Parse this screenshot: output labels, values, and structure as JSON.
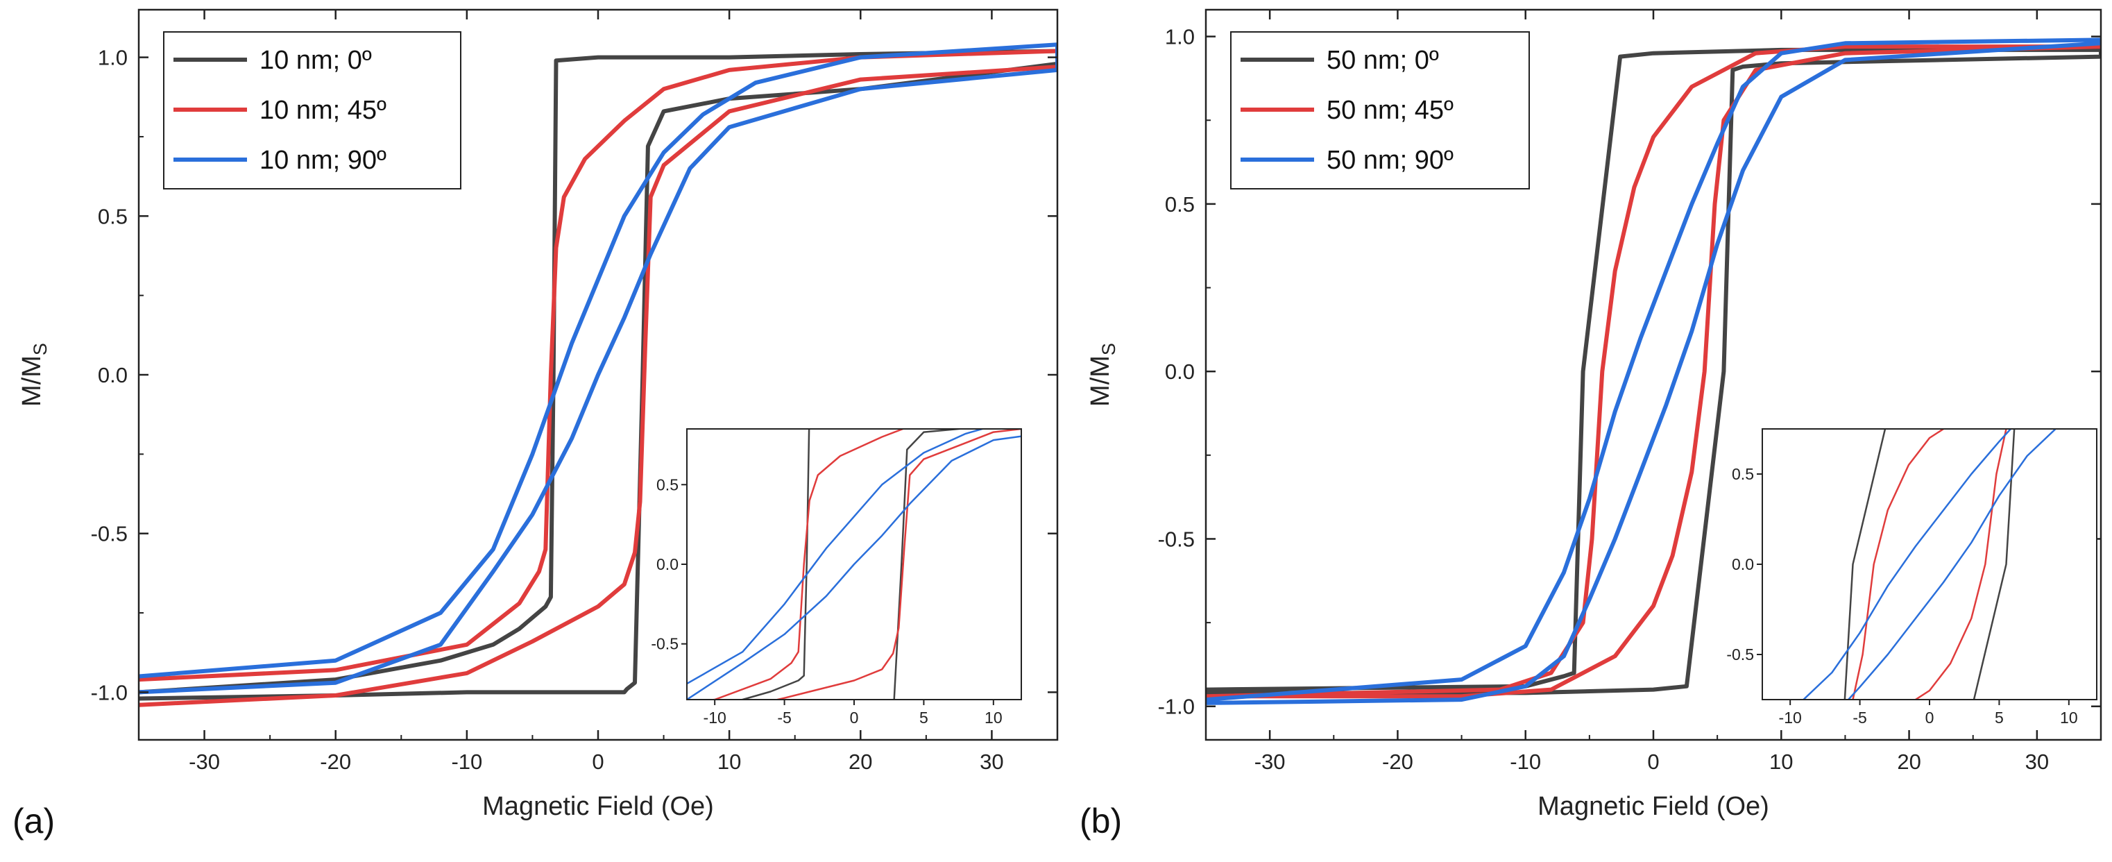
{
  "chart_data": [
    {
      "type": "line",
      "panel": "(a)",
      "xlabel": "Magnetic Field (Oe)",
      "ylabel": "M/M",
      "ylabel_subscript": "S",
      "xlim": [
        -35,
        35
      ],
      "ylim": [
        -1.15,
        1.15
      ],
      "xticks": [
        -30,
        -20,
        -10,
        0,
        10,
        20,
        30
      ],
      "yticks": [
        -1.0,
        -0.5,
        0.0,
        0.5,
        1.0
      ],
      "xtick_labels": [
        "-30",
        "-20",
        "-10",
        "0",
        "10",
        "20",
        "30"
      ],
      "ytick_labels": [
        "-1.0",
        "-0.5",
        "0.0",
        "0.5",
        "1.0"
      ],
      "legend_position": "top-left",
      "series": [
        {
          "name": "10 nm; 0º",
          "color": "#444444",
          "x": [
            -35,
            -20,
            -12,
            -8,
            -6,
            -4,
            -3.6,
            -3.4,
            -3.2,
            0,
            10,
            20,
            35,
            35,
            20,
            10,
            5,
            3.8,
            3.4,
            2.8,
            2.2,
            2,
            0,
            -5,
            -10,
            -20,
            -35
          ],
          "y": [
            -1.0,
            -0.96,
            -0.9,
            -0.85,
            -0.8,
            -0.73,
            -0.7,
            0.0,
            0.99,
            1.0,
            1.0,
            1.01,
            1.02,
            0.98,
            0.9,
            0.87,
            0.83,
            0.72,
            0.0,
            -0.97,
            -0.99,
            -1.0,
            -1.0,
            -1.0,
            -1.0,
            -1.01,
            -1.02
          ]
        },
        {
          "name": "10 nm; 45º",
          "color": "#e03c3c",
          "x": [
            -35,
            -20,
            -10,
            -6,
            -4.5,
            -4,
            -3.6,
            -3.2,
            -2.6,
            -1,
            2,
            5,
            10,
            20,
            35,
            35,
            20,
            10,
            5,
            4,
            3.6,
            3.2,
            2.8,
            2,
            0,
            -5,
            -10,
            -20,
            -35
          ],
          "y": [
            -0.96,
            -0.93,
            -0.85,
            -0.72,
            -0.62,
            -0.55,
            0.0,
            0.4,
            0.56,
            0.68,
            0.8,
            0.9,
            0.96,
            1.0,
            1.02,
            0.97,
            0.93,
            0.83,
            0.66,
            0.56,
            0.1,
            -0.4,
            -0.56,
            -0.66,
            -0.73,
            -0.84,
            -0.94,
            -1.01,
            -1.04
          ]
        },
        {
          "name": "10 nm; 90º",
          "color": "#2a6fdb",
          "x": [
            -35,
            -20,
            -12,
            -8,
            -5,
            -2,
            0,
            2,
            5,
            8,
            12,
            20,
            35,
            35,
            20,
            10,
            7,
            4,
            2,
            0,
            -2,
            -5,
            -8,
            -12,
            -20,
            -35
          ],
          "y": [
            -0.95,
            -0.9,
            -0.75,
            -0.55,
            -0.25,
            0.1,
            0.3,
            0.5,
            0.7,
            0.82,
            0.92,
            1.0,
            1.04,
            0.96,
            0.9,
            0.78,
            0.65,
            0.38,
            0.18,
            0.0,
            -0.2,
            -0.44,
            -0.62,
            -0.85,
            -0.97,
            -1.0
          ]
        }
      ],
      "inset": {
        "xlim": [
          -12,
          12
        ],
        "ylim": [
          -0.85,
          0.85
        ],
        "xticks": [
          -10,
          -5,
          0,
          5,
          10
        ],
        "yticks": [
          -0.5,
          0.0,
          0.5
        ],
        "xtick_labels": [
          "-10",
          "-5",
          "0",
          "5",
          "10"
        ],
        "ytick_labels": [
          "-0.5",
          "0.0",
          "0.5"
        ]
      }
    },
    {
      "type": "line",
      "panel": "(b)",
      "xlabel": "Magnetic Field (Oe)",
      "ylabel": "M/M",
      "ylabel_subscript": "S",
      "xlim": [
        -35,
        35
      ],
      "ylim": [
        -1.1,
        1.08
      ],
      "xticks": [
        -30,
        -20,
        -10,
        0,
        10,
        20,
        30
      ],
      "yticks": [
        -1.0,
        -0.5,
        0.0,
        0.5,
        1.0
      ],
      "xtick_labels": [
        "-30",
        "-20",
        "-10",
        "0",
        "10",
        "20",
        "30"
      ],
      "ytick_labels": [
        "-1.0",
        "-0.5",
        "0.0",
        "0.5",
        "1.0"
      ],
      "legend_position": "top-left",
      "series": [
        {
          "name": "50 nm; 0º",
          "color": "#444444",
          "x": [
            -35,
            -10,
            -7,
            -6.2,
            -5.5,
            -2.6,
            0,
            10,
            35,
            35,
            10,
            7,
            6.2,
            5.5,
            2.6,
            0,
            -10,
            -35
          ],
          "y": [
            -0.95,
            -0.94,
            -0.91,
            -0.9,
            0.0,
            0.94,
            0.95,
            0.96,
            0.96,
            0.94,
            0.92,
            0.91,
            0.9,
            0.0,
            -0.94,
            -0.95,
            -0.96,
            -0.96
          ]
        },
        {
          "name": "50 nm; 45º",
          "color": "#e03c3c",
          "x": [
            -35,
            -12,
            -8,
            -5.5,
            -4.8,
            -4,
            -3,
            -1.5,
            0,
            3,
            8,
            15,
            35,
            35,
            15,
            8,
            5.5,
            4.8,
            4,
            3,
            1.5,
            0,
            -3,
            -8,
            -15,
            -35
          ],
          "y": [
            -0.97,
            -0.95,
            -0.9,
            -0.75,
            -0.5,
            0.0,
            0.3,
            0.55,
            0.7,
            0.85,
            0.95,
            0.97,
            0.97,
            0.97,
            0.95,
            0.9,
            0.75,
            0.5,
            0.0,
            -0.3,
            -0.55,
            -0.7,
            -0.85,
            -0.95,
            -0.97,
            -0.97
          ]
        },
        {
          "name": "50 nm; 90º",
          "color": "#2a6fdb",
          "x": [
            -35,
            -15,
            -10,
            -7,
            -5,
            -3,
            -1,
            1,
            3,
            5,
            7,
            10,
            15,
            35,
            35,
            15,
            10,
            7,
            5,
            3,
            1,
            -1,
            -3,
            -5,
            -7,
            -10,
            -15,
            -35
          ],
          "y": [
            -0.98,
            -0.92,
            -0.82,
            -0.6,
            -0.38,
            -0.12,
            0.1,
            0.3,
            0.5,
            0.68,
            0.85,
            0.95,
            0.98,
            0.99,
            0.98,
            0.93,
            0.82,
            0.6,
            0.38,
            0.12,
            -0.1,
            -0.3,
            -0.5,
            -0.68,
            -0.85,
            -0.94,
            -0.98,
            -0.99
          ]
        }
      ],
      "inset": {
        "xlim": [
          -12,
          12
        ],
        "ylim": [
          -0.75,
          0.75
        ],
        "xticks": [
          -10,
          -5,
          0,
          5,
          10
        ],
        "yticks": [
          -0.5,
          0.0,
          0.5
        ],
        "xtick_labels": [
          "-10",
          "-5",
          "0",
          "5",
          "10"
        ],
        "ytick_labels": [
          "-0.5",
          "0.0",
          "0.5"
        ]
      }
    }
  ]
}
